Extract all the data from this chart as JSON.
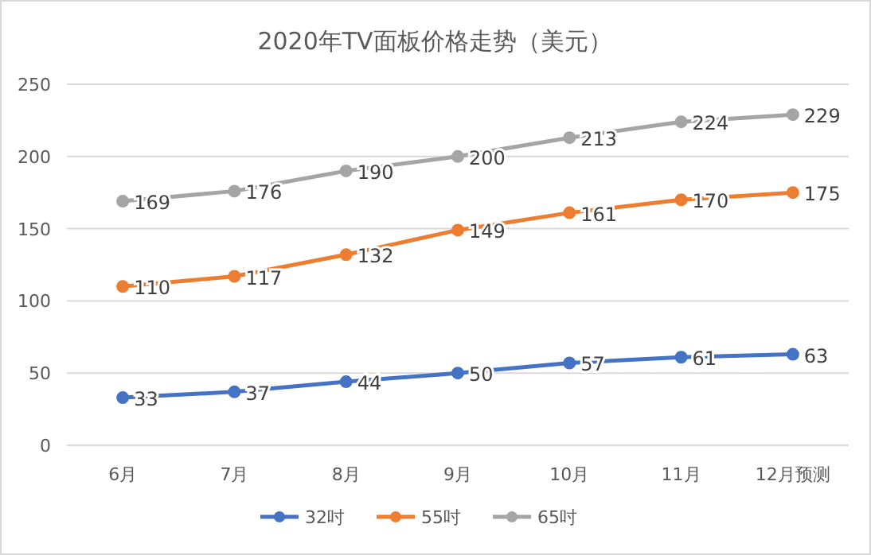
{
  "chart_data": {
    "type": "line",
    "title": "2020年TV面板价格走势（美元）",
    "categories": [
      "6月",
      "7月",
      "8月",
      "9月",
      "10月",
      "11月",
      "12月预测"
    ],
    "series": [
      {
        "name": "32吋",
        "color": "#4472c4",
        "values": [
          33,
          37,
          44,
          50,
          57,
          61,
          63
        ]
      },
      {
        "name": "55吋",
        "color": "#ed7d31",
        "values": [
          110,
          117,
          132,
          149,
          161,
          170,
          175
        ]
      },
      {
        "name": "65吋",
        "color": "#a5a5a5",
        "values": [
          169,
          176,
          190,
          200,
          213,
          224,
          229
        ]
      }
    ],
    "ylim": [
      0,
      250
    ],
    "yticks": [
      0,
      50,
      100,
      150,
      200,
      250
    ],
    "grid": "y",
    "legend": "bottom",
    "marker": "circle",
    "line_style": "solid",
    "data_labels": true
  }
}
